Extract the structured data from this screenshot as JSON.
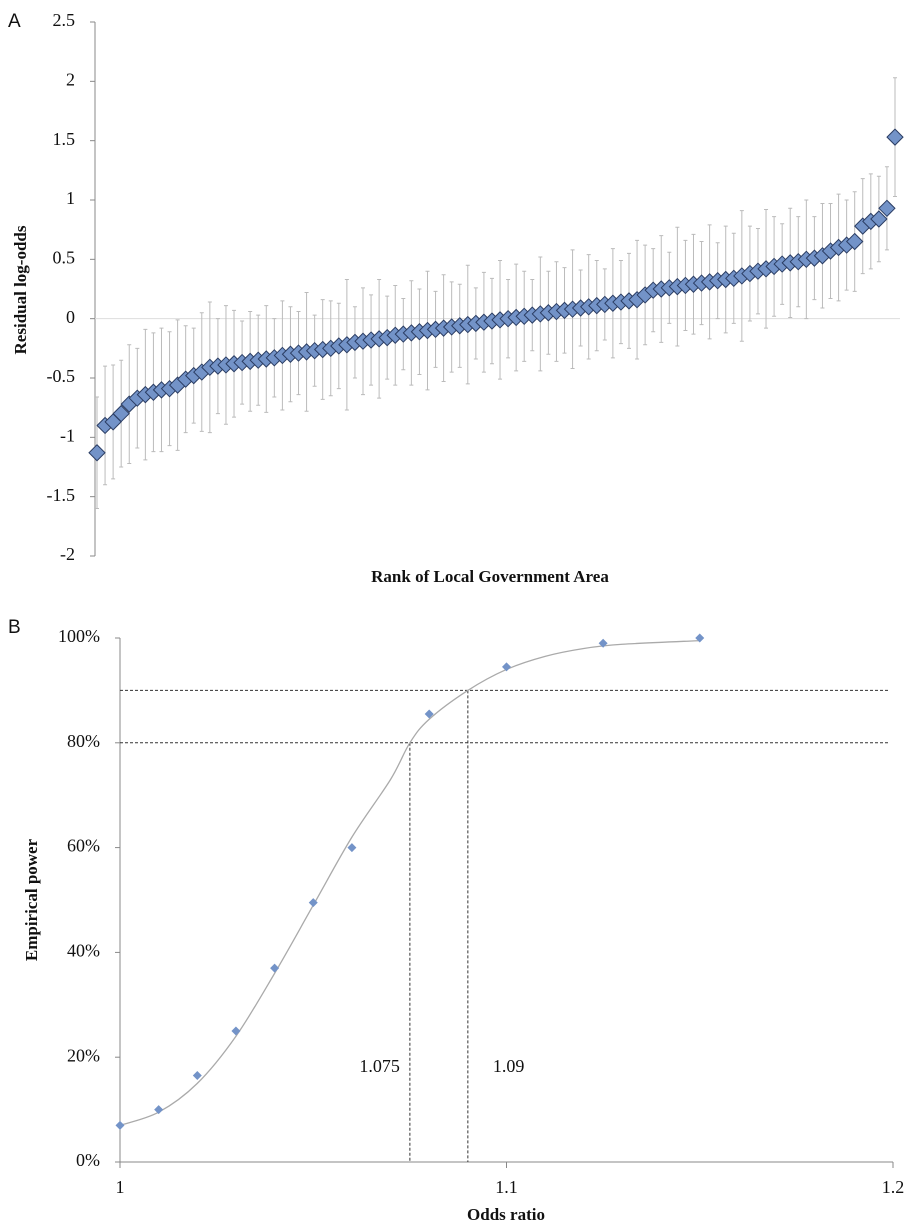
{
  "chart_data": [
    {
      "type": "errorbar",
      "panel_label": "A",
      "y_label": "Residual log-odds",
      "x_label": "Rank of Local Government Area",
      "values": [
        -1.13,
        -0.9,
        -0.87,
        -0.8,
        -0.72,
        -0.67,
        -0.64,
        -0.62,
        -0.6,
        -0.59,
        -0.56,
        -0.51,
        -0.48,
        -0.45,
        -0.41,
        -0.4,
        -0.39,
        -0.38,
        -0.37,
        -0.36,
        -0.35,
        -0.34,
        -0.33,
        -0.31,
        -0.3,
        -0.29,
        -0.28,
        -0.27,
        -0.26,
        -0.25,
        -0.23,
        -0.22,
        -0.2,
        -0.19,
        -0.18,
        -0.17,
        -0.16,
        -0.14,
        -0.13,
        -0.12,
        -0.11,
        -0.1,
        -0.09,
        -0.08,
        -0.07,
        -0.06,
        -0.05,
        -0.04,
        -0.03,
        -0.02,
        -0.01,
        0,
        0.01,
        0.02,
        0.03,
        0.04,
        0.05,
        0.06,
        0.07,
        0.08,
        0.09,
        0.1,
        0.11,
        0.12,
        0.13,
        0.14,
        0.15,
        0.16,
        0.2,
        0.24,
        0.25,
        0.26,
        0.27,
        0.28,
        0.29,
        0.3,
        0.31,
        0.32,
        0.33,
        0.34,
        0.36,
        0.38,
        0.4,
        0.42,
        0.44,
        0.46,
        0.47,
        0.48,
        0.5,
        0.51,
        0.53,
        0.57,
        0.6,
        0.62,
        0.65,
        0.78,
        0.82,
        0.84,
        0.93,
        1.53
      ],
      "errors": [
        0.47,
        0.5,
        0.48,
        0.45,
        0.5,
        0.42,
        0.55,
        0.5,
        0.52,
        0.48,
        0.55,
        0.45,
        0.4,
        0.5,
        0.55,
        0.4,
        0.5,
        0.45,
        0.35,
        0.42,
        0.38,
        0.45,
        0.33,
        0.46,
        0.4,
        0.35,
        0.5,
        0.3,
        0.42,
        0.4,
        0.36,
        0.55,
        0.3,
        0.45,
        0.38,
        0.5,
        0.35,
        0.42,
        0.3,
        0.44,
        0.36,
        0.5,
        0.32,
        0.45,
        0.38,
        0.35,
        0.5,
        0.3,
        0.42,
        0.36,
        0.5,
        0.33,
        0.45,
        0.38,
        0.3,
        0.48,
        0.35,
        0.42,
        0.36,
        0.5,
        0.32,
        0.44,
        0.38,
        0.3,
        0.46,
        0.35,
        0.4,
        0.5,
        0.42,
        0.35,
        0.45,
        0.3,
        0.5,
        0.38,
        0.42,
        0.35,
        0.48,
        0.32,
        0.45,
        0.38,
        0.55,
        0.4,
        0.36,
        0.5,
        0.42,
        0.34,
        0.46,
        0.38,
        0.5,
        0.35,
        0.44,
        0.4,
        0.45,
        0.38,
        0.42,
        0.4,
        0.4,
        0.36,
        0.35,
        0.5
      ],
      "marker_color": "#7393c8",
      "marker_edge": "#2b3d63",
      "error_color": "#bbbbbb",
      "ylim": [
        -2,
        2.5
      ],
      "yticks": [
        -2,
        -1.5,
        -1,
        -0.5,
        0,
        0.5,
        1,
        1.5,
        2,
        2.5
      ]
    },
    {
      "type": "scatter",
      "panel_label": "B",
      "y_label": "Empirical power",
      "x_label": "Odds ratio",
      "x": [
        1,
        1.01,
        1.02,
        1.03,
        1.04,
        1.05,
        1.06,
        1.08,
        1.1,
        1.125,
        1.15
      ],
      "values": [
        7,
        10,
        16.5,
        25,
        37,
        49.5,
        60,
        85.5,
        94.5,
        99,
        100
      ],
      "marker_color": "#7393c8",
      "fit": {
        "color": "#aaaaaa",
        "x": [
          1,
          1.01,
          1.02,
          1.03,
          1.04,
          1.05,
          1.06,
          1.07,
          1.075,
          1.08,
          1.09,
          1.1,
          1.11,
          1.12,
          1.13,
          1.15
        ],
        "values": [
          7,
          9.5,
          15,
          24,
          36,
          49,
          62,
          73,
          80,
          84.5,
          90,
          94,
          96.5,
          98,
          98.8,
          99.5
        ]
      },
      "reference_lines": [
        {
          "x": 1.075,
          "y": 80
        },
        {
          "x": 1.09,
          "y": 90
        }
      ],
      "xlim": [
        1,
        1.2
      ],
      "xticks": [
        1,
        1.1,
        1.2
      ],
      "ylim": [
        0,
        100
      ],
      "yticks": [
        {
          "value": 0,
          "label": "0%"
        },
        {
          "value": 20,
          "label": "20%"
        },
        {
          "value": 40,
          "label": "40%"
        },
        {
          "value": 60,
          "label": "60%"
        },
        {
          "value": 80,
          "label": "80%"
        },
        {
          "value": 100,
          "label": "100%"
        }
      ]
    }
  ]
}
